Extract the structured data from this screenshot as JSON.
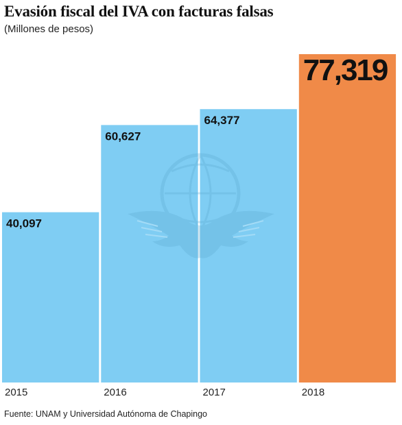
{
  "chart_data": {
    "type": "bar",
    "title": "Evasión fiscal del IVA con facturas falsas",
    "subtitle": "(Millones de pesos)",
    "source": "Fuente: UNAM y Universidad Autónoma de Chapingo",
    "categories": [
      "2015",
      "2016",
      "2017",
      "2018"
    ],
    "values": [
      40097,
      60627,
      64377,
      77319
    ],
    "value_labels": [
      "40,097",
      "60,627",
      "64,377",
      "77,319"
    ],
    "ylim": [
      0,
      82000
    ],
    "grid": false,
    "colors": {
      "bar": "#7fcdf3",
      "highlight": "#f08a48",
      "watermark": "#5aa7cf"
    },
    "highlight_index": 3
  }
}
